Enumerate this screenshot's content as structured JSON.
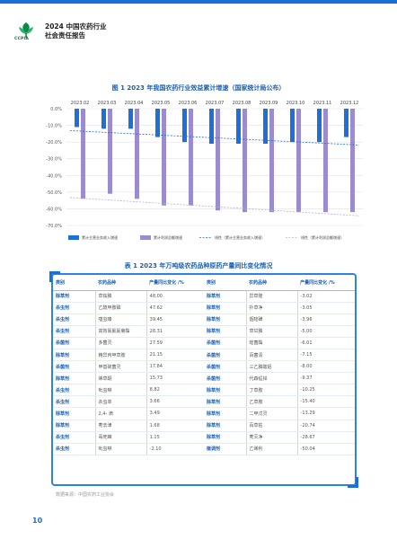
{
  "header": {
    "logo_text": "CCPIA",
    "title_line1": "2024 中国农药行业",
    "title_line2": "社会责任报告"
  },
  "colors": {
    "revenue_bar": "#1f6fd8",
    "profit_bar": "#9b8ccf",
    "accent": "#1a6fd6"
  },
  "chart_data": {
    "type": "bar",
    "title": "图 1  2023 年我国农药行业效益累计增速（国家统计局公布）",
    "categories": [
      "2023.02",
      "2023.03",
      "2023.04",
      "2023.05",
      "2023.06",
      "2023.07",
      "2023.08",
      "2023.09",
      "2023.10",
      "2023.11",
      "2023.12"
    ],
    "series": [
      {
        "name": "累计主营业务收入增速",
        "values": [
          -11,
          -12,
          -12,
          -17,
          -20,
          -21,
          -21,
          -21,
          -20,
          -20,
          -17
        ]
      },
      {
        "name": "累计利润总额增速",
        "values": [
          -54,
          -51,
          -54,
          -58,
          -58,
          -61,
          -62,
          -62,
          -62,
          -62,
          -62
        ]
      }
    ],
    "trendlines": [
      {
        "name": "线性（累计主营业务收入增速）"
      },
      {
        "name": "线性（累计利润总额增速）"
      }
    ],
    "ylim": [
      -70,
      0
    ],
    "yticks": [
      "0.0%",
      "-10.0%",
      "-20.0%",
      "-30.0%",
      "-40.0%",
      "-50.0%",
      "-60.0%",
      "-70.0%"
    ],
    "grid": true,
    "legend_position": "bottom"
  },
  "table": {
    "title": "表 1  2023 年万吨级农药品种原药产量同比变化情况",
    "headers": [
      "类别",
      "农药品种",
      "产量同比变化 /%",
      "类别",
      "农药品种",
      "产量同比变化 /%"
    ],
    "rows": [
      [
        "除草剂",
        "草铵膦",
        "48.00",
        "除草剂",
        "异草隆",
        "-3.02"
      ],
      [
        "杀虫剂",
        "乙酰甲胺磷",
        "47.62",
        "除草剂",
        "扑草净",
        "-3.05"
      ],
      [
        "杀虫剂",
        "噻虫嗪",
        "39.45",
        "除草剂",
        "烟嘧磺",
        "-3.96"
      ],
      [
        "杀虫剂",
        "高效氯氟氰菊酯",
        "28.31",
        "除草剂",
        "草甘膦",
        "-5.00"
      ],
      [
        "杀菌剂",
        "多菌灵",
        "27.59",
        "杀菌剂",
        "嘧菌酯",
        "-6.01"
      ],
      [
        "除草剂",
        "精异丙甲草胺",
        "21.15",
        "杀菌剂",
        "百菌清",
        "-7.15"
      ],
      [
        "杀菌剂",
        "甲基硫菌灵",
        "17.84",
        "杀菌剂",
        "三乙膦酸铝",
        "-8.00"
      ],
      [
        "除草剂",
        "烯草酮",
        "15.73",
        "杀菌剂",
        "代森锰锌",
        "-9.37"
      ],
      [
        "杀虫剂",
        "吡虫啉",
        "8.82",
        "除草剂",
        "丁草胺",
        "-10.25"
      ],
      [
        "杀虫剂",
        "杀虫单",
        "3.66",
        "除草剂",
        "乙草胺",
        "-15.40"
      ],
      [
        "除草剂",
        "2,4- 滴",
        "3.49",
        "除草剂",
        "二甲戊灵",
        "-13.29"
      ],
      [
        "除草剂",
        "莠去津",
        "1.68",
        "除草剂",
        "百草枯",
        "-20.74"
      ],
      [
        "杀虫剂",
        "毒死蜱",
        "1.15",
        "除草剂",
        "莠灭净",
        "-28.67"
      ],
      [
        "杀虫剂",
        "吡虫啉",
        "-2.10",
        "植调剂",
        "乙烯利",
        "-50.04"
      ]
    ]
  },
  "source": "数据来源：中国农药工业协会",
  "page_number": "10"
}
